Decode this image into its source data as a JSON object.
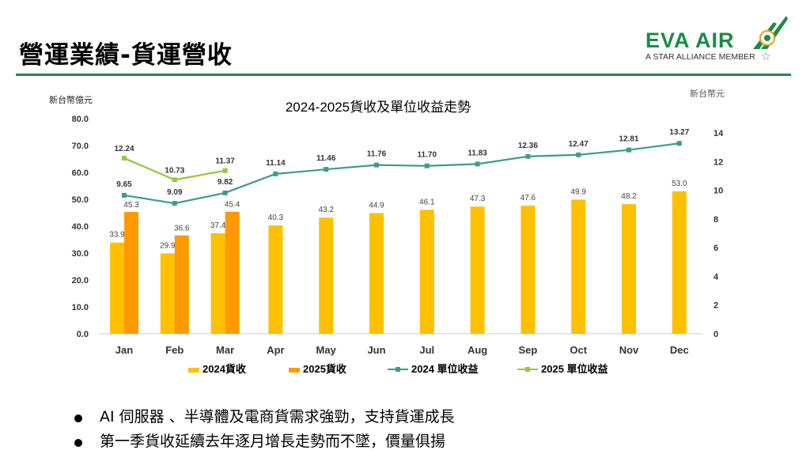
{
  "header": {
    "title": "營運業績-貨運營收",
    "logo_text": "EVA AIR",
    "logo_tagline": "A STAR ALLIANCE MEMBER"
  },
  "colors": {
    "bar_2024": "#ffc000",
    "bar_2025": "#ff9900",
    "line_2024": "#3c9c8c",
    "line_2025": "#92c83e",
    "brand_green": "#1a8c45"
  },
  "chart_data": {
    "type": "bar",
    "title": "2024-2025貨收及單位收益走勢",
    "left_axis_unit": "新台幣億元",
    "right_axis_unit": "新台幣元",
    "categories": [
      "Jan",
      "Feb",
      "Mar",
      "Apr",
      "May",
      "Jun",
      "Jul",
      "Aug",
      "Sep",
      "Oct",
      "Nov",
      "Dec"
    ],
    "ylim_left": [
      0,
      80
    ],
    "left_ticks": [
      "0.0",
      "10.0",
      "20.0",
      "30.0",
      "40.0",
      "50.0",
      "60.0",
      "70.0",
      "80.0"
    ],
    "ylim_right": [
      0,
      14
    ],
    "right_ticks": [
      "0",
      "2",
      "4",
      "6",
      "8",
      "10",
      "12",
      "14"
    ],
    "grid": false,
    "legend_position": "bottom",
    "bar_series": [
      {
        "name": "2024貨收",
        "values": [
          33.9,
          29.9,
          37.4,
          40.3,
          43.2,
          44.9,
          46.1,
          47.3,
          47.6,
          49.9,
          48.2,
          53.0
        ],
        "labels": [
          "33.9",
          "29.9",
          "37.4",
          "40.3",
          "43.2",
          "44.9",
          "46.1",
          "47.3",
          "47.6",
          "49.9",
          "48.2",
          "53.0"
        ]
      },
      {
        "name": "2025貨收",
        "values": [
          45.3,
          36.6,
          45.4
        ],
        "labels": [
          "45.3",
          "36.6",
          "45.4"
        ]
      }
    ],
    "line_series": [
      {
        "name": "2024 單位收益",
        "axis": "right",
        "values": [
          9.65,
          9.09,
          9.82,
          11.14,
          11.46,
          11.76,
          11.7,
          11.83,
          12.36,
          12.47,
          12.81,
          13.27
        ],
        "labels": [
          "9.65",
          "9.09",
          "9.82",
          "11.14",
          "11.46",
          "11.76",
          "11.70",
          "11.83",
          "12.36",
          "12.47",
          "12.81",
          "13.27"
        ]
      },
      {
        "name": "2025 單位收益",
        "axis": "right",
        "values": [
          12.24,
          10.73,
          11.37
        ],
        "labels": [
          "12.24",
          "10.73",
          "11.37"
        ]
      }
    ]
  },
  "bullets": [
    "AI 伺服器 、半導體及電商貨需求強勁，支持貨運成長",
    "第一季貨收延續去年逐月增長走勢而不墜，價量俱揚"
  ]
}
